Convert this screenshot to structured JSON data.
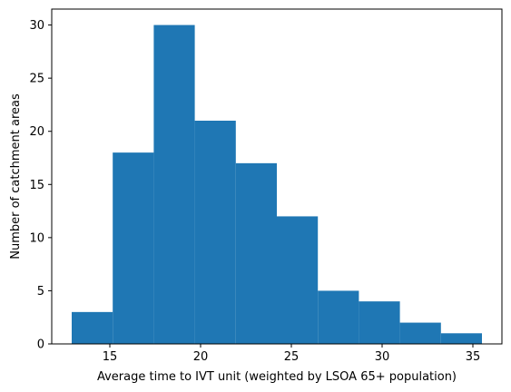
{
  "chart_data": {
    "type": "bar",
    "subtype": "histogram",
    "title": "",
    "xlabel": "Average time to IVT unit (weighted by LSOA 65+ population)",
    "ylabel": "Number of catchment areas",
    "bin_edges": [
      12.9,
      15.16,
      17.42,
      19.68,
      21.94,
      24.2,
      26.46,
      28.72,
      30.98,
      33.24,
      35.5
    ],
    "values": [
      3,
      18,
      30,
      21,
      17,
      12,
      5,
      4,
      2,
      1
    ],
    "xlim": [
      11.8,
      36.6
    ],
    "ylim": [
      0,
      31.5
    ],
    "xticks": [
      15,
      20,
      25,
      30,
      35
    ],
    "yticks": [
      0,
      5,
      10,
      15,
      20,
      25,
      30
    ],
    "bar_color": "#1f77b4",
    "grid": false,
    "legend": "none"
  }
}
